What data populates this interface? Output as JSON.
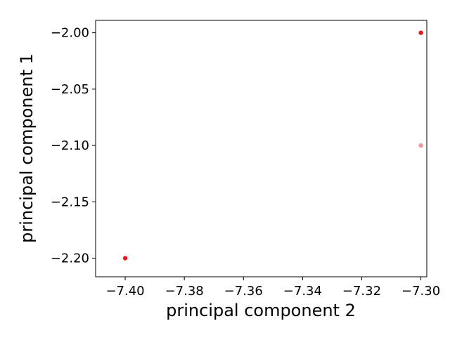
{
  "chart_data": {
    "type": "scatter",
    "title": "",
    "xlabel": "principal component 2",
    "ylabel": "principal component 1",
    "xlim": [
      -7.41,
      -7.298
    ],
    "ylim": [
      -2.2165,
      -1.989
    ],
    "xticks": [
      {
        "value": -7.4,
        "label": "−7.40"
      },
      {
        "value": -7.38,
        "label": "−7.38"
      },
      {
        "value": -7.36,
        "label": "−7.36"
      },
      {
        "value": -7.34,
        "label": "−7.34"
      },
      {
        "value": -7.32,
        "label": "−7.32"
      },
      {
        "value": -7.3,
        "label": "−7.30"
      }
    ],
    "yticks": [
      {
        "value": -2.0,
        "label": "−2.00"
      },
      {
        "value": -2.05,
        "label": "−2.05"
      },
      {
        "value": -2.1,
        "label": "−2.10"
      },
      {
        "value": -2.15,
        "label": "−2.15"
      },
      {
        "value": -2.2,
        "label": "−2.20"
      }
    ],
    "grid": false,
    "points": [
      {
        "x": -7.3,
        "y": -2.0,
        "color": "#e31a1c",
        "opacity": 1.0
      },
      {
        "x": -7.3,
        "y": -2.1,
        "color": "#f08080",
        "opacity": 0.8
      },
      {
        "x": -7.4,
        "y": -2.2,
        "color": "#e31a1c",
        "opacity": 1.0
      }
    ]
  }
}
